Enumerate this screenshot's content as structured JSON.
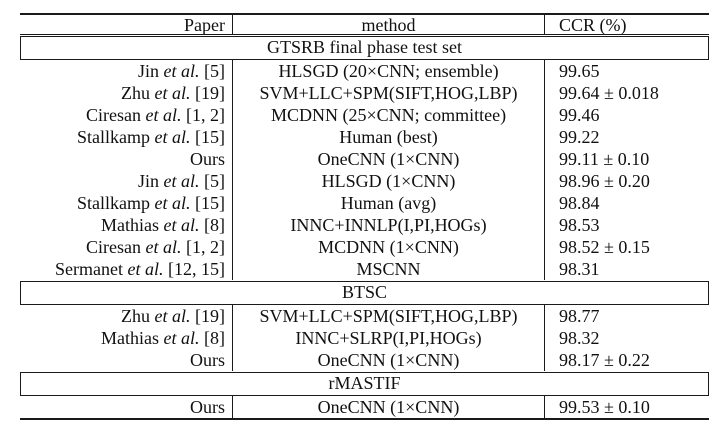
{
  "table": {
    "columns": [
      "Paper",
      "method",
      "CCR (%)"
    ],
    "sections": [
      {
        "title": "GTSRB final phase test set",
        "rows": [
          {
            "paper": [
              "Jin ",
              "et al.",
              " [5]"
            ],
            "method": "HLSGD (20×CNN; ensemble)",
            "ccr": "99.65"
          },
          {
            "paper": [
              "Zhu ",
              "et al.",
              " [19]"
            ],
            "method": "SVM+LLC+SPM(SIFT,HOG,LBP)",
            "ccr": "99.64 ± 0.018"
          },
          {
            "paper": [
              "Ciresan ",
              "et al.",
              " [1, 2]"
            ],
            "method": "MCDNN (25×CNN; committee)",
            "ccr": "99.46"
          },
          {
            "paper": [
              "Stallkamp ",
              "et al.",
              " [15]"
            ],
            "method": "Human (best)",
            "ccr": "99.22"
          },
          {
            "paper": [
              "Ours"
            ],
            "method": "OneCNN (1×CNN)",
            "ccr": "99.11 ± 0.10"
          },
          {
            "paper": [
              "Jin ",
              "et al.",
              " [5]"
            ],
            "method": "HLSGD (1×CNN)",
            "ccr": "98.96 ± 0.20"
          },
          {
            "paper": [
              "Stallkamp ",
              "et al.",
              " [15]"
            ],
            "method": "Human (avg)",
            "ccr": "98.84"
          },
          {
            "paper": [
              "Mathias ",
              "et al.",
              " [8]"
            ],
            "method": "INNC+INNLP(I,PI,HOGs)",
            "ccr": "98.53"
          },
          {
            "paper": [
              "Ciresan ",
              "et al.",
              " [1, 2]"
            ],
            "method": "MCDNN (1×CNN)",
            "ccr": "98.52 ± 0.15"
          },
          {
            "paper": [
              "Sermanet ",
              "et al.",
              " [12, 15]"
            ],
            "method": "MSCNN",
            "ccr": "98.31"
          }
        ]
      },
      {
        "title": "BTSC",
        "rows": [
          {
            "paper": [
              "Zhu ",
              "et al.",
              " [19]"
            ],
            "method": "SVM+LLC+SPM(SIFT,HOG,LBP)",
            "ccr": "98.77"
          },
          {
            "paper": [
              "Mathias ",
              "et al.",
              " [8]"
            ],
            "method": "INNC+SLRP(I,PI,HOGs)",
            "ccr": "98.32"
          },
          {
            "paper": [
              "Ours"
            ],
            "method": "OneCNN (1×CNN)",
            "ccr": "98.17 ± 0.22"
          }
        ]
      },
      {
        "title": "rMASTIF",
        "rows": [
          {
            "paper": [
              "Ours"
            ],
            "method": "OneCNN (1×CNN)",
            "ccr": "99.53 ± 0.10"
          }
        ]
      }
    ]
  }
}
